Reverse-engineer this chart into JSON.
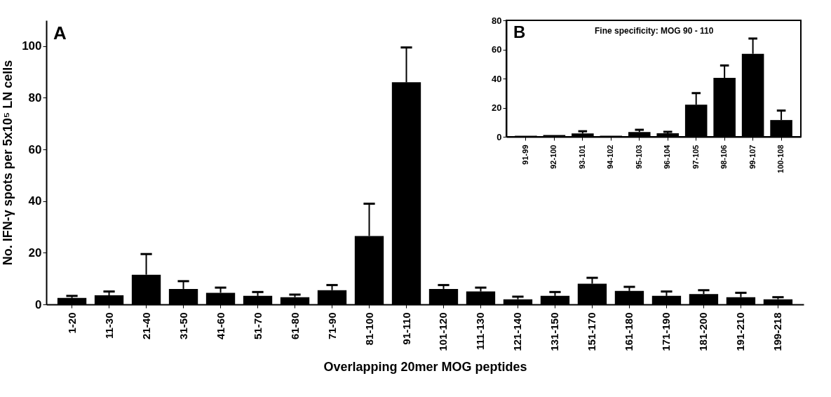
{
  "chart_data": [
    {
      "type": "bar",
      "xlabel": "Overlapping 20mer MOG peptides",
      "ylabel": "No. IFN-γ spots per 5x10⁵ LN cells",
      "annotations": [
        "A"
      ],
      "categories": [
        "1-20",
        "11-30",
        "21-40",
        "31-50",
        "41-60",
        "51-70",
        "61-80",
        "71-90",
        "81-100",
        "91-110",
        "101-120",
        "111-130",
        "121-140",
        "131-150",
        "151-170",
        "161-180",
        "171-190",
        "181-200",
        "191-210",
        "199-218"
      ],
      "values": [
        2.5,
        3.5,
        11.5,
        6,
        4.5,
        3.3,
        2.8,
        5.5,
        26.5,
        86,
        6,
        5,
        2,
        3.3,
        8,
        5.2,
        3.3,
        4,
        2.8,
        2
      ],
      "errors": [
        [
          2.5,
          3.3
        ],
        [
          3.5,
          5
        ],
        [
          11.5,
          19.5
        ],
        [
          6,
          9
        ],
        [
          4.5,
          6.5
        ],
        [
          3.3,
          4.8
        ],
        [
          2.8,
          3.8
        ],
        [
          5.5,
          7.5
        ],
        [
          26.5,
          39
        ],
        [
          86,
          99.5
        ],
        [
          6,
          7.5
        ],
        [
          5,
          6.5
        ],
        [
          2,
          3
        ],
        [
          3.3,
          4.8
        ],
        [
          8,
          10.3
        ],
        [
          5.2,
          6.8
        ],
        [
          3.3,
          5
        ],
        [
          4,
          5.5
        ],
        [
          2.8,
          4.5
        ],
        [
          2,
          2.8
        ]
      ],
      "color": "#000000",
      "ylim": [
        0,
        110
      ],
      "yticks": [
        0,
        20,
        40,
        60,
        80,
        100
      ],
      "grid": false
    },
    {
      "type": "bar",
      "title": "Fine specificity: MOG 90 - 110",
      "annotations": [
        "B"
      ],
      "categories": [
        "91-99",
        "92-100",
        "93-101",
        "94-102",
        "95-103",
        "96-104",
        "97-105",
        "98-106",
        "99-107",
        "100-108"
      ],
      "values": [
        0.7,
        1.2,
        2.3,
        0.7,
        3.3,
        2.4,
        22,
        40.5,
        57,
        11.5
      ],
      "errors": [
        null,
        null,
        [
          2.3,
          3.8
        ],
        null,
        [
          3.3,
          4.8
        ],
        [
          2.4,
          3.4
        ],
        [
          22,
          30
        ],
        [
          40.5,
          49
        ],
        [
          57,
          67.5
        ],
        [
          11.5,
          18
        ]
      ],
      "color": "#000000",
      "ylim": [
        0,
        80
      ],
      "yticks": [
        0,
        20,
        40,
        60,
        80
      ],
      "grid": false
    }
  ]
}
